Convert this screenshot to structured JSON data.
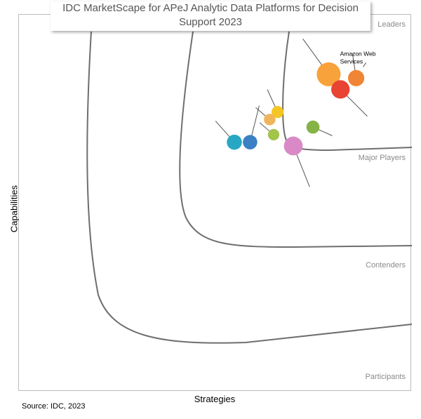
{
  "title": {
    "line1": "IDC MarketScape for APeJ Analytic Data Platforms for Decision",
    "line2": "Support 2023"
  },
  "source": "Source: IDC, 2023",
  "chart_data": {
    "type": "scatter",
    "xlabel": "Strategies",
    "ylabel": "Capabilities",
    "zones": [
      "Leaders",
      "Major Players",
      "Contenders",
      "Participants"
    ],
    "vendors": [
      {
        "name": "Amazon Web Services",
        "strategies": 0.86,
        "capabilities": 0.83,
        "size": 0.55,
        "color": "#f08535"
      },
      {
        "name": "",
        "strategies": 0.79,
        "capabilities": 0.84,
        "size": 1.0,
        "color": "#f7a23a"
      },
      {
        "name": "",
        "strategies": 0.82,
        "capabilities": 0.8,
        "size": 0.68,
        "color": "#e84333"
      },
      {
        "name": "",
        "strategies": 0.66,
        "capabilities": 0.74,
        "size": 0.3,
        "color": "#f5c623"
      },
      {
        "name": "",
        "strategies": 0.64,
        "capabilities": 0.72,
        "size": 0.27,
        "color": "#f0b55a"
      },
      {
        "name": "",
        "strategies": 0.75,
        "capabilities": 0.7,
        "size": 0.36,
        "color": "#86b347"
      },
      {
        "name": "",
        "strategies": 0.65,
        "capabilities": 0.68,
        "size": 0.26,
        "color": "#a3c34a"
      },
      {
        "name": "",
        "strategies": 0.7,
        "capabilities": 0.65,
        "size": 0.7,
        "color": "#d98ac6"
      },
      {
        "name": "",
        "strategies": 0.55,
        "capabilities": 0.66,
        "size": 0.48,
        "color": "#27a7c4"
      },
      {
        "name": "",
        "strategies": 0.59,
        "capabilities": 0.66,
        "size": 0.44,
        "color": "#3b7fc4"
      }
    ]
  }
}
